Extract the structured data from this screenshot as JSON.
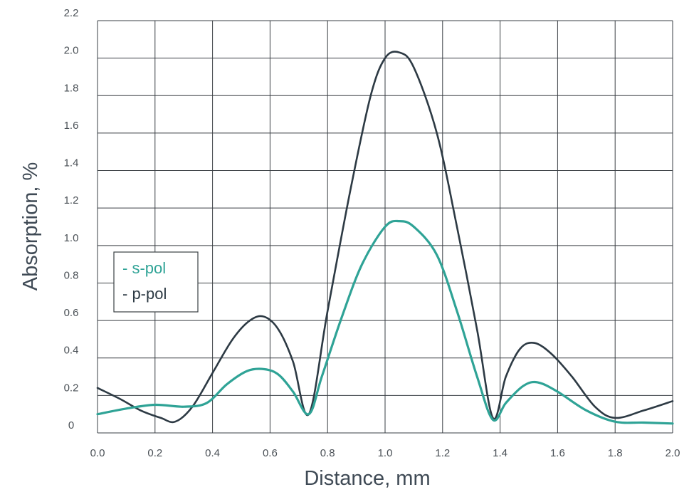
{
  "chart_data": {
    "type": "line",
    "xlabel": "Distance, mm",
    "ylabel": "Absorption, %",
    "xlim": [
      0.0,
      2.0
    ],
    "ylim": [
      0.0,
      2.2
    ],
    "x_ticks": [
      "0.0",
      "0.2",
      "0.4",
      "0.6",
      "0.8",
      "1.0",
      "1.2",
      "1.4",
      "1.6",
      "1.8",
      "2.0"
    ],
    "y_ticks": [
      "0",
      "0.2",
      "0.4",
      "0.6",
      "0.8",
      "1.0",
      "1.2",
      "1.4",
      "1.6",
      "1.8",
      "2.0",
      "2.2"
    ],
    "grid": true,
    "legend_position": "left-middle",
    "series": [
      {
        "name": "s-pol",
        "color": "#2fa396",
        "x": [
          0.0,
          0.1,
          0.2,
          0.3,
          0.38,
          0.45,
          0.52,
          0.58,
          0.63,
          0.68,
          0.735,
          0.78,
          0.85,
          0.92,
          1.0,
          1.05,
          1.1,
          1.18,
          1.25,
          1.32,
          1.375,
          1.42,
          1.48,
          1.53,
          1.6,
          1.7,
          1.8,
          1.9,
          2.0
        ],
        "y": [
          0.1,
          0.13,
          0.15,
          0.14,
          0.16,
          0.26,
          0.33,
          0.34,
          0.31,
          0.22,
          0.1,
          0.3,
          0.62,
          0.9,
          1.1,
          1.13,
          1.1,
          0.95,
          0.65,
          0.3,
          0.07,
          0.16,
          0.25,
          0.27,
          0.22,
          0.12,
          0.06,
          0.055,
          0.05
        ]
      },
      {
        "name": "p-pol",
        "color": "#2d3a44",
        "x": [
          0.0,
          0.08,
          0.15,
          0.22,
          0.27,
          0.33,
          0.4,
          0.47,
          0.53,
          0.58,
          0.63,
          0.68,
          0.735,
          0.8,
          0.88,
          0.95,
          1.0,
          1.05,
          1.1,
          1.18,
          1.25,
          1.32,
          1.375,
          1.42,
          1.47,
          1.52,
          1.58,
          1.65,
          1.73,
          1.8,
          1.9,
          2.0
        ],
        "y": [
          0.24,
          0.18,
          0.12,
          0.08,
          0.06,
          0.14,
          0.32,
          0.5,
          0.6,
          0.62,
          0.55,
          0.38,
          0.1,
          0.65,
          1.3,
          1.8,
          2.0,
          2.03,
          1.95,
          1.6,
          1.1,
          0.55,
          0.08,
          0.3,
          0.45,
          0.48,
          0.42,
          0.3,
          0.14,
          0.08,
          0.12,
          0.17
        ]
      }
    ]
  }
}
